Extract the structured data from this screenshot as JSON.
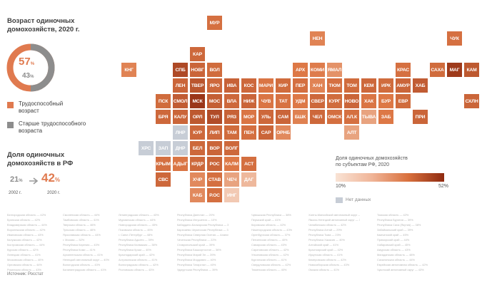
{
  "left": {
    "title_line1": "Возраст одиночных",
    "title_line2": "домохозяйств, 2020 г.",
    "donut_big": "57",
    "donut_small": "43",
    "pct": "%",
    "legend": [
      {
        "line1": "Трудоспособный",
        "line2": "возраст",
        "color": "#e07a4f"
      },
      {
        "line1": "Старше трудоспособного",
        "line2": "возраста",
        "color": "#8d8d8d"
      }
    ],
    "rf_title_line1": "Доля одиночных",
    "rf_title_line2": "домохозяйств в РФ",
    "v2002": "21",
    "v2020": "42",
    "y2002": "2002 г.",
    "y2020": "2020 г."
  },
  "legend_scale": {
    "title_line1": "Доля одиночных домохозяйств",
    "title_line2": "по субъектам РФ, 2020",
    "min": "10%",
    "max": "52%",
    "nodata": "Нет данных"
  },
  "source": "Источник: Росстат",
  "chart_data": {
    "type": "heatmap",
    "title": "Доля одиночных домохозяйств по субъектам РФ, 2020",
    "scale": {
      "min": 10,
      "max": 52,
      "unit": "%"
    },
    "colors": {
      "nodata": "#c7cdd6",
      "low": "#f9e3d5",
      "high": "#8e2a10"
    },
    "tiles": [
      {
        "code": "МУР",
        "row": 0,
        "col": 5,
        "level": 0.55
      },
      {
        "code": "НЕН",
        "row": 1,
        "col": 11,
        "level": 0.45
      },
      {
        "code": "ЧУК",
        "row": 1,
        "col": 19,
        "level": 0.55
      },
      {
        "code": "КАР",
        "row": 2,
        "col": 4,
        "level": 0.6
      },
      {
        "code": "КНГ",
        "row": 3,
        "col": 0,
        "level": 0.45
      },
      {
        "code": "СПБ",
        "row": 3,
        "col": 3,
        "level": 0.8
      },
      {
        "code": "НОВГ",
        "row": 3,
        "col": 4,
        "level": 0.62
      },
      {
        "code": "ВОЛ",
        "row": 3,
        "col": 5,
        "level": 0.58
      },
      {
        "code": "АРХ",
        "row": 3,
        "col": 10,
        "level": 0.5
      },
      {
        "code": "КОМИ",
        "row": 3,
        "col": 11,
        "level": 0.48
      },
      {
        "code": "ЯМАЛ",
        "row": 3,
        "col": 12,
        "level": 0.38
      },
      {
        "code": "КРАС",
        "row": 3,
        "col": 16,
        "level": 0.55
      },
      {
        "code": "САХА",
        "row": 3,
        "col": 18,
        "level": 0.58
      },
      {
        "code": "МАГ",
        "row": 3,
        "col": 19,
        "level": 0.9
      },
      {
        "code": "КАМ",
        "row": 3,
        "col": 20,
        "level": 0.7
      },
      {
        "code": "ЛЕН",
        "row": 4,
        "col": 3,
        "level": 0.62
      },
      {
        "code": "ТВЕР",
        "row": 4,
        "col": 4,
        "level": 0.72
      },
      {
        "code": "ЯРО",
        "row": 4,
        "col": 5,
        "level": 0.6
      },
      {
        "code": "ИВА",
        "row": 4,
        "col": 6,
        "level": 0.64
      },
      {
        "code": "КОС",
        "row": 4,
        "col": 7,
        "level": 0.6
      },
      {
        "code": "МАРИ",
        "row": 4,
        "col": 8,
        "level": 0.52
      },
      {
        "code": "КИР",
        "row": 4,
        "col": 9,
        "level": 0.58
      },
      {
        "code": "ПЕР",
        "row": 4,
        "col": 10,
        "level": 0.56
      },
      {
        "code": "ХАН",
        "row": 4,
        "col": 11,
        "level": 0.45
      },
      {
        "code": "ТЮМ",
        "row": 4,
        "col": 12,
        "level": 0.55
      },
      {
        "code": "ТОМ",
        "row": 4,
        "col": 13,
        "level": 0.58
      },
      {
        "code": "КЕМ",
        "row": 4,
        "col": 14,
        "level": 0.6
      },
      {
        "code": "ИРК",
        "row": 4,
        "col": 15,
        "level": 0.58
      },
      {
        "code": "АМУР",
        "row": 4,
        "col": 16,
        "level": 0.62
      },
      {
        "code": "ХАБ",
        "row": 4,
        "col": 17,
        "level": 0.68
      },
      {
        "code": "ПСК",
        "row": 5,
        "col": 2,
        "level": 0.58
      },
      {
        "code": "СМОЛ",
        "row": 5,
        "col": 3,
        "level": 0.68
      },
      {
        "code": "МСК",
        "row": 5,
        "col": 4,
        "level": 0.92
      },
      {
        "code": "МОС",
        "row": 5,
        "col": 5,
        "level": 0.66
      },
      {
        "code": "ВЛА",
        "row": 5,
        "col": 6,
        "level": 0.6
      },
      {
        "code": "НИЖ",
        "row": 5,
        "col": 7,
        "level": 0.62
      },
      {
        "code": "ЧУВ",
        "row": 5,
        "col": 8,
        "level": 0.52
      },
      {
        "code": "ТАТ",
        "row": 5,
        "col": 9,
        "level": 0.54
      },
      {
        "code": "УДМ",
        "row": 5,
        "col": 10,
        "level": 0.5
      },
      {
        "code": "СВЕР",
        "row": 5,
        "col": 11,
        "level": 0.6
      },
      {
        "code": "КУРГ",
        "row": 5,
        "col": 12,
        "level": 0.58
      },
      {
        "code": "НОВО",
        "row": 5,
        "col": 13,
        "level": 0.62
      },
      {
        "code": "ХАК",
        "row": 5,
        "col": 14,
        "level": 0.52
      },
      {
        "code": "БУР",
        "row": 5,
        "col": 15,
        "level": 0.5
      },
      {
        "code": "ЕВР",
        "row": 5,
        "col": 16,
        "level": 0.58
      },
      {
        "code": "СХЛН",
        "row": 5,
        "col": 20,
        "level": 0.62
      },
      {
        "code": "БРЯ",
        "row": 6,
        "col": 2,
        "level": 0.6
      },
      {
        "code": "КАЛУ",
        "row": 6,
        "col": 3,
        "level": 0.62
      },
      {
        "code": "ОРЛ",
        "row": 6,
        "col": 4,
        "level": 0.7
      },
      {
        "code": "ТУЛ",
        "row": 6,
        "col": 5,
        "level": 0.78
      },
      {
        "code": "РЯЗ",
        "row": 6,
        "col": 6,
        "level": 0.64
      },
      {
        "code": "МОР",
        "row": 6,
        "col": 7,
        "level": 0.52
      },
      {
        "code": "УЛЬ",
        "row": 6,
        "col": 8,
        "level": 0.6
      },
      {
        "code": "САМ",
        "row": 6,
        "col": 9,
        "level": 0.62
      },
      {
        "code": "БШК",
        "row": 6,
        "col": 10,
        "level": 0.46
      },
      {
        "code": "ЧЕЛ",
        "row": 6,
        "col": 11,
        "level": 0.6
      },
      {
        "code": "ОМСК",
        "row": 6,
        "col": 12,
        "level": 0.56
      },
      {
        "code": "АЛ.К",
        "row": 6,
        "col": 13,
        "level": 0.55
      },
      {
        "code": "ТЫВА",
        "row": 6,
        "col": 14,
        "level": 0.3
      },
      {
        "code": "ЗАБ",
        "row": 6,
        "col": 15,
        "level": 0.5
      },
      {
        "code": "ПРИ",
        "row": 6,
        "col": 17,
        "level": 0.62
      },
      {
        "code": "ЛНР",
        "row": 7,
        "col": 3,
        "nodata": true
      },
      {
        "code": "КУР",
        "row": 7,
        "col": 4,
        "level": 0.6
      },
      {
        "code": "ЛИП",
        "row": 7,
        "col": 5,
        "level": 0.6
      },
      {
        "code": "ТАМ",
        "row": 7,
        "col": 6,
        "level": 0.58
      },
      {
        "code": "ПЕН",
        "row": 7,
        "col": 7,
        "level": 0.56
      },
      {
        "code": "САР",
        "row": 7,
        "col": 8,
        "level": 0.62
      },
      {
        "code": "ОРНБ",
        "row": 7,
        "col": 9,
        "level": 0.42
      },
      {
        "code": "АЛТ",
        "row": 7,
        "col": 13,
        "level": 0.3
      },
      {
        "code": "ХРС",
        "row": 8,
        "col": 1,
        "nodata": true
      },
      {
        "code": "ЗАП",
        "row": 8,
        "col": 2,
        "nodata": true
      },
      {
        "code": "ДНР",
        "row": 8,
        "col": 3,
        "nodata": true
      },
      {
        "code": "БЕЛ",
        "row": 8,
        "col": 4,
        "level": 0.6
      },
      {
        "code": "ВОР",
        "row": 8,
        "col": 5,
        "level": 0.62
      },
      {
        "code": "ВОЛГ",
        "row": 8,
        "col": 6,
        "level": 0.6
      },
      {
        "code": "КРЫМ",
        "row": 9,
        "col": 2,
        "level": 0.56
      },
      {
        "code": "АДЫГ",
        "row": 9,
        "col": 3,
        "level": 0.52
      },
      {
        "code": "КРДР",
        "row": 9,
        "col": 4,
        "level": 0.6
      },
      {
        "code": "РОС",
        "row": 9,
        "col": 5,
        "level": 0.62
      },
      {
        "code": "КАЛМ",
        "row": 9,
        "col": 6,
        "level": 0.5
      },
      {
        "code": "АСТ",
        "row": 9,
        "col": 7,
        "level": 0.56
      },
      {
        "code": "СВС",
        "row": 10,
        "col": 2,
        "level": 0.6
      },
      {
        "code": "ХЧР",
        "row": 10,
        "col": 4,
        "level": 0.42
      },
      {
        "code": "СТАВ",
        "row": 10,
        "col": 5,
        "level": 0.56
      },
      {
        "code": "ЧЕЧ",
        "row": 10,
        "col": 6,
        "level": 0.3
      },
      {
        "code": "ДАГ",
        "row": 10,
        "col": 7,
        "level": 0.2
      },
      {
        "code": "КАБ",
        "row": 11,
        "col": 4,
        "level": 0.42
      },
      {
        "code": "Р.ОС",
        "row": 11,
        "col": 5,
        "level": 0.56
      },
      {
        "code": "ИНГ",
        "row": 11,
        "col": 6,
        "level": 0.12
      }
    ]
  },
  "region_columns": [
    [
      "Белгородская область — 42%",
      "Брянская область — 42%",
      "Владимирская область — 44%",
      "Воронежская область — 42%",
      "Ивановская область — 43%",
      "Калужская область — 42%",
      "Костромская область — 44%",
      "Курская область — 42%",
      "Липецкая область — 41%",
      "Московская область — 40%",
      "Орловская область — 44%",
      "Рязанская область — 43%"
    ],
    [
      "Смоленская область — 44%",
      "Тамбовская область — 41%",
      "Тверская область — 46%",
      "Тульская область — 46%",
      "Ярославская область — 44%",
      "г. Москва — 52%",
      "Республика Карелия — 43%",
      "Республика Коми — 41%",
      "Архангельская область — 41%",
      "Ненецкий автономный округ — 40%",
      "Вологодская область — 43%",
      "Калининградская область — 41%"
    ],
    [
      "Ленинградская область — 43%",
      "Мурманская область — 44%",
      "Новгородская область — 45%",
      "Псковская область — 45%",
      "г. Санкт-Петербург — 48%",
      "Республика Адыгея — 39%",
      "Республика Калмыкия — 38%",
      "Республика Крым — 40%",
      "Краснодарский край — 42%",
      "Астраханская область — 41%",
      "Волгоградская область — 42%",
      "Ростовская область — 43%"
    ],
    [
      "Республика Дагестан — 20%",
      "Республика Ингушетия — 10%",
      "Кабардино-Балкарская Республика — 30%",
      "Карачаево-Черкесская Республика — 31%",
      "Республика Северная Осетия — Алания — 36%",
      "Чеченская Республика — 22%",
      "Ставропольский край — 39%",
      "Республика Башкортостан — 36%",
      "Республика Марий Эл — 39%",
      "Республика Мордовия — 40%",
      "Республика Татарстан — 40%",
      "Удмуртская Республика — 39%"
    ],
    [
      "Чувашская Республика — 38%",
      "Пермский край — 41%",
      "Кировская область — 42%",
      "Нижегородская область — 43%",
      "Оренбургская область — 37%",
      "Пензенская область — 40%",
      "Самарская область — 43%",
      "Саратовская область — 42%",
      "Ульяновская область — 42%",
      "Курганская область — 41%",
      "Свердловская область — 42%",
      "Тюменская область — 40%"
    ],
    [
      "Ханты-Мансийский автономный округ — 38%",
      "Ямало-Ненецкий автономный округ — 35%",
      "Челябинская область — 42%",
      "Республика Алтай — 29%",
      "Республика Тыва — 23%",
      "Республика Хакасия — 40%",
      "Алтайский край — 41%",
      "Красноярский край — 42%",
      "Иркутская область — 41%",
      "Кемеровская область — 42%",
      "Новосибирская область — 43%",
      "Омская область — 41%"
    ],
    [
      "Томская область — 42%",
      "Республика Бурятия — 39%",
      "Республика Саха (Якутия) — 38%",
      "Забайкальский край — 39%",
      "Камчатский край — 45%",
      "Приморский край — 44%",
      "Хабаровский край — 45%",
      "Амурская область — 43%",
      "Магаданская область — 48%",
      "Сахалинская область — 44%",
      "Еврейская автономная область — 42%",
      "Чукотский автономный округ — 43%"
    ]
  ]
}
